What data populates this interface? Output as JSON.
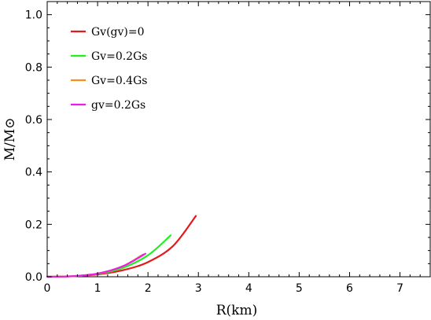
{
  "chart_data": {
    "type": "line",
    "xlabel": "R(km)",
    "ylabel": "M/M⊙",
    "xlim": [
      0,
      7.6
    ],
    "ylim": [
      0,
      1.05
    ],
    "x_ticks": [
      0,
      1,
      2,
      3,
      4,
      5,
      6,
      7
    ],
    "y_ticks": [
      0.0,
      0.2,
      0.4,
      0.6,
      0.8,
      1.0
    ],
    "x_tick_labels": [
      "0",
      "1",
      "2",
      "3",
      "4",
      "5",
      "6",
      "7"
    ],
    "y_tick_labels": [
      "0.0",
      "0.2",
      "0.4",
      "0.6",
      "0.8",
      "1.0"
    ],
    "grid": false,
    "legend_position": "top-left",
    "series": [
      {
        "name": "Gv(gv)=0",
        "color": "#e31a1c",
        "x": [
          0.0,
          0.5,
          1.0,
          1.5,
          2.0,
          2.5,
          2.95
        ],
        "y": [
          0.0,
          0.002,
          0.009,
          0.025,
          0.056,
          0.118,
          0.232
        ]
      },
      {
        "name": "Gv=0.2Gs",
        "color": "#22ee22",
        "x": [
          0.0,
          0.5,
          1.0,
          1.5,
          2.0,
          2.45
        ],
        "y": [
          0.0,
          0.002,
          0.011,
          0.034,
          0.082,
          0.158
        ]
      },
      {
        "name": "Gv=0.4Gs",
        "color": "#f5901e",
        "x": [
          0.0,
          0.5,
          1.0,
          1.5,
          1.9
        ],
        "y": [
          0.0,
          0.002,
          0.012,
          0.04,
          0.085
        ]
      },
      {
        "name": "gv=0.2Gs",
        "color": "#e81ee8",
        "x": [
          0.0,
          0.5,
          1.0,
          1.5,
          1.95
        ],
        "y": [
          0.0,
          0.002,
          0.012,
          0.04,
          0.088
        ]
      }
    ]
  }
}
